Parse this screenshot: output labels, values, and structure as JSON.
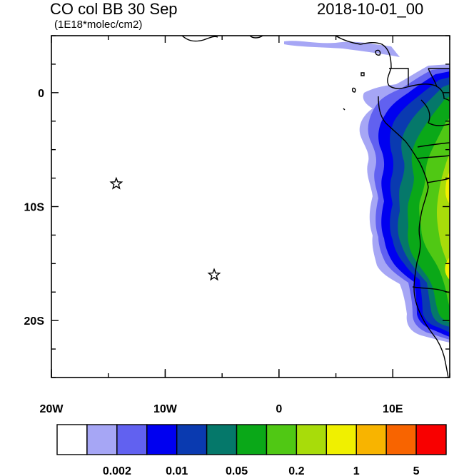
{
  "title": {
    "left": "CO col BB 30 Sep",
    "units": "(1E18*molec/cm2)",
    "right": "2018-10-01_00"
  },
  "map": {
    "lon_range": [
      -20,
      15
    ],
    "lat_range": [
      -25,
      5
    ],
    "x_ticks": [
      {
        "value": -20,
        "label": "20W"
      },
      {
        "value": -10,
        "label": "10W"
      },
      {
        "value": 0,
        "label": "0"
      },
      {
        "value": 10,
        "label": "10E"
      }
    ],
    "y_ticks": [
      {
        "value": 0,
        "label": "0"
      },
      {
        "value": -10,
        "label": "10S"
      },
      {
        "value": -20,
        "label": "20S"
      }
    ],
    "markers": [
      {
        "lon": -14.3,
        "lat": -8.0,
        "symbol": "star"
      },
      {
        "lon": -5.7,
        "lat": -16.0,
        "symbol": "star"
      }
    ]
  },
  "colorbar": {
    "colors": [
      "#ffffff",
      "#a6a6f5",
      "#6161f0",
      "#0000f0",
      "#0a3ab0",
      "#05786a",
      "#0aa818",
      "#50c814",
      "#a8dc0a",
      "#f0f000",
      "#f8b400",
      "#f86400",
      "#f80000"
    ],
    "labels": [
      {
        "after_box": 2,
        "text": "0.002"
      },
      {
        "after_box": 4,
        "text": "0.01"
      },
      {
        "after_box": 6,
        "text": "0.05"
      },
      {
        "after_box": 8,
        "text": "0.2"
      },
      {
        "after_box": 10,
        "text": "1"
      },
      {
        "after_box": 12,
        "text": "5"
      }
    ]
  }
}
